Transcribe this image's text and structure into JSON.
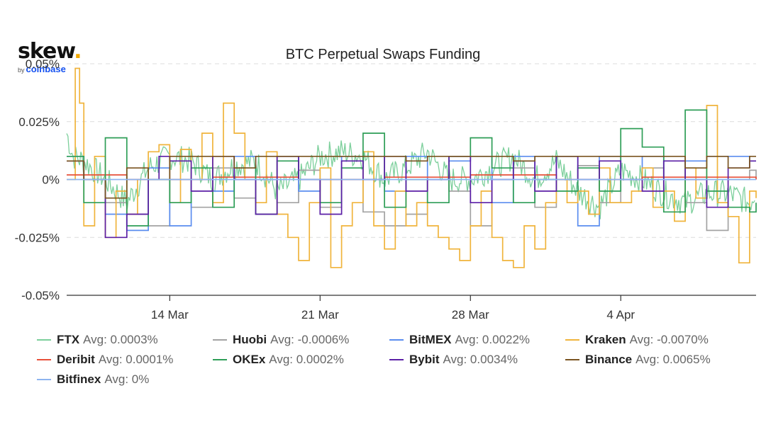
{
  "logo": {
    "word": "skew",
    "dot": ".",
    "by": "by",
    "brand": "coinbase"
  },
  "chart_data": {
    "type": "line",
    "title": "BTC Perpetual Swaps Funding",
    "y_ticks": [
      "0.05%",
      "0.025%",
      "0%",
      "-0.025%",
      "-0.05%"
    ],
    "y_tick_values": [
      0.05,
      0.025,
      0,
      -0.025,
      -0.05
    ],
    "ylim": [
      -0.05,
      0.05
    ],
    "x_ticks": [
      "14 Mar",
      "21 Mar",
      "28 Mar",
      "4 Apr"
    ],
    "x_tick_days": [
      14,
      21,
      28,
      35
    ],
    "xlim": [
      9.2,
      41.3
    ],
    "x_unit": "day of March",
    "gridlines": true,
    "legend_position": "bottom",
    "series": [
      {
        "name": "FTX",
        "avg_label": "Avg: 0.0003%",
        "color": "#7ccf9b",
        "style": "noisy",
        "points": [
          [
            9.2,
            0.02
          ],
          [
            9.5,
            0.01
          ],
          [
            10,
            0.008
          ],
          [
            11,
            0.0
          ],
          [
            12,
            -0.01
          ],
          [
            13,
            0.005
          ],
          [
            14,
            0.01
          ],
          [
            15,
            0.008
          ],
          [
            16,
            0.0
          ],
          [
            17,
            0.006
          ],
          [
            18,
            0.008
          ],
          [
            19,
            -0.005
          ],
          [
            20,
            0.0
          ],
          [
            21,
            0.01
          ],
          [
            22,
            0.012
          ],
          [
            23,
            0.01
          ],
          [
            24,
            0.0
          ],
          [
            25,
            0.005
          ],
          [
            26,
            0.012
          ],
          [
            27,
            0.0
          ],
          [
            28,
            0.0
          ],
          [
            29,
            0.005
          ],
          [
            30,
            0.01
          ],
          [
            31,
            0.0
          ],
          [
            32,
            0.008
          ],
          [
            33,
            -0.005
          ],
          [
            34,
            -0.012
          ],
          [
            35,
            0.004
          ],
          [
            36,
            0.0
          ],
          [
            37,
            -0.006
          ],
          [
            38,
            -0.01
          ],
          [
            39,
            -0.006
          ],
          [
            40,
            -0.006
          ],
          [
            41,
            -0.01
          ],
          [
            41.3,
            -0.005
          ]
        ]
      },
      {
        "name": "Huobi",
        "avg_label": "Avg: -0.0006%",
        "color": "#a3a3a3",
        "style": "step",
        "points": [
          [
            9.2,
            0.008
          ],
          [
            10,
            0.0
          ],
          [
            11,
            -0.01
          ],
          [
            12,
            -0.015
          ],
          [
            13,
            -0.02
          ],
          [
            14,
            0.0
          ],
          [
            15,
            -0.012
          ],
          [
            16,
            0.005
          ],
          [
            17,
            -0.008
          ],
          [
            18,
            0.0
          ],
          [
            19,
            -0.01
          ],
          [
            20,
            0.004
          ],
          [
            21,
            -0.012
          ],
          [
            22,
            0.0
          ],
          [
            23,
            -0.014
          ],
          [
            24,
            -0.02
          ],
          [
            25,
            -0.015
          ],
          [
            26,
            0.0
          ],
          [
            27,
            -0.005
          ],
          [
            28,
            -0.02
          ],
          [
            29,
            0.0
          ],
          [
            30,
            0.005
          ],
          [
            31,
            -0.012
          ],
          [
            32,
            0.0
          ],
          [
            33,
            0.006
          ],
          [
            34,
            -0.01
          ],
          [
            35,
            0.0
          ],
          [
            36,
            0.005
          ],
          [
            37,
            0.0
          ],
          [
            38,
            -0.01
          ],
          [
            39,
            -0.022
          ],
          [
            40,
            0.0
          ],
          [
            41,
            0.004
          ],
          [
            41.3,
            0.0
          ]
        ]
      },
      {
        "name": "BitMEX",
        "avg_label": "Avg: 0.0022%",
        "color": "#5b8def",
        "style": "step",
        "points": [
          [
            9.2,
            0.01
          ],
          [
            10,
            0.0
          ],
          [
            11,
            -0.015
          ],
          [
            12,
            -0.022
          ],
          [
            13,
            0.005
          ],
          [
            14,
            -0.02
          ],
          [
            15,
            0.0
          ],
          [
            16,
            -0.005
          ],
          [
            17,
            0.01
          ],
          [
            18,
            0.0
          ],
          [
            19,
            0.01
          ],
          [
            20,
            -0.005
          ],
          [
            21,
            0.0
          ],
          [
            22,
            0.01
          ],
          [
            23,
            0.0
          ],
          [
            24,
            -0.005
          ],
          [
            25,
            0.01
          ],
          [
            26,
            0.0
          ],
          [
            27,
            0.008
          ],
          [
            28,
            0.01
          ],
          [
            29,
            -0.01
          ],
          [
            30,
            0.01
          ],
          [
            31,
            0.0
          ],
          [
            32,
            0.01
          ],
          [
            33,
            -0.02
          ],
          [
            34,
            0.01
          ],
          [
            35,
            0.0
          ],
          [
            36,
            0.01
          ],
          [
            37,
            0.0
          ],
          [
            38,
            0.008
          ],
          [
            39,
            0.01
          ],
          [
            40,
            0.01
          ],
          [
            41,
            0.008
          ],
          [
            41.3,
            0.008
          ]
        ]
      },
      {
        "name": "Kraken",
        "avg_label": "Avg: -0.0070%",
        "color": "#f0b43c",
        "style": "step",
        "points": [
          [
            9.2,
            0.0
          ],
          [
            9.6,
            0.048
          ],
          [
            9.8,
            0.033
          ],
          [
            10,
            -0.02
          ],
          [
            10.5,
            0.01
          ],
          [
            11,
            -0.025
          ],
          [
            11.5,
            -0.005
          ],
          [
            12,
            -0.015
          ],
          [
            12.5,
            0.0
          ],
          [
            13,
            0.012
          ],
          [
            13.5,
            0.015
          ],
          [
            14,
            -0.01
          ],
          [
            14.5,
            0.013
          ],
          [
            15,
            0.0
          ],
          [
            15.5,
            0.02
          ],
          [
            16,
            -0.01
          ],
          [
            16.5,
            0.033
          ],
          [
            17,
            0.02
          ],
          [
            17.5,
            0.0
          ],
          [
            18,
            -0.01
          ],
          [
            18.5,
            0.012
          ],
          [
            19,
            -0.015
          ],
          [
            19.5,
            -0.025
          ],
          [
            20,
            -0.035
          ],
          [
            20.5,
            -0.01
          ],
          [
            21,
            0.005
          ],
          [
            21.5,
            -0.038
          ],
          [
            22,
            -0.02
          ],
          [
            22.5,
            -0.01
          ],
          [
            23,
            0.012
          ],
          [
            23.5,
            -0.02
          ],
          [
            24,
            -0.03
          ],
          [
            24.5,
            -0.005
          ],
          [
            25,
            -0.02
          ],
          [
            25.5,
            -0.01
          ],
          [
            26,
            -0.02
          ],
          [
            26.5,
            -0.025
          ],
          [
            27,
            -0.03
          ],
          [
            27.5,
            -0.035
          ],
          [
            28,
            -0.02
          ],
          [
            28.5,
            -0.005
          ],
          [
            29,
            -0.025
          ],
          [
            29.5,
            -0.035
          ],
          [
            30,
            -0.038
          ],
          [
            30.5,
            -0.02
          ],
          [
            31,
            -0.03
          ],
          [
            31.5,
            -0.01
          ],
          [
            32,
            0.0
          ],
          [
            32.5,
            -0.01
          ],
          [
            33,
            -0.005
          ],
          [
            33.5,
            -0.015
          ],
          [
            34,
            0.005
          ],
          [
            34.5,
            -0.01
          ],
          [
            35,
            -0.01
          ],
          [
            35.5,
            -0.005
          ],
          [
            36,
            0.005
          ],
          [
            36.5,
            -0.012
          ],
          [
            37,
            -0.005
          ],
          [
            37.5,
            -0.018
          ],
          [
            38,
            0.005
          ],
          [
            38.5,
            -0.008
          ],
          [
            39,
            0.032
          ],
          [
            39.5,
            -0.01
          ],
          [
            40,
            -0.016
          ],
          [
            40.5,
            -0.036
          ],
          [
            41,
            -0.005
          ],
          [
            41.3,
            -0.008
          ]
        ]
      },
      {
        "name": "Deribit",
        "avg_label": "Avg: 0.0001%",
        "color": "#e8503a",
        "style": "step",
        "points": [
          [
            9.2,
            0.002
          ],
          [
            12,
            0.0
          ],
          [
            16,
            0.001
          ],
          [
            20,
            0.0
          ],
          [
            24,
            0.001
          ],
          [
            28,
            0.002
          ],
          [
            32,
            0.0
          ],
          [
            36,
            0.001
          ],
          [
            39,
            0.001
          ],
          [
            41.3,
            0.0
          ]
        ]
      },
      {
        "name": "OKEx",
        "avg_label": "Avg: 0.0002%",
        "color": "#2e9e57",
        "style": "step",
        "points": [
          [
            9.2,
            0.01
          ],
          [
            10,
            -0.01
          ],
          [
            11,
            0.018
          ],
          [
            12,
            -0.02
          ],
          [
            13,
            0.0
          ],
          [
            14,
            -0.01
          ],
          [
            15,
            0.005
          ],
          [
            16,
            -0.012
          ],
          [
            17,
            0.005
          ],
          [
            18,
            -0.015
          ],
          [
            19,
            0.008
          ],
          [
            20,
            0.0
          ],
          [
            21,
            -0.01
          ],
          [
            22,
            0.005
          ],
          [
            23,
            0.02
          ],
          [
            24,
            -0.012
          ],
          [
            25,
            0.0
          ],
          [
            26,
            -0.01
          ],
          [
            27,
            0.01
          ],
          [
            28,
            0.018
          ],
          [
            29,
            0.005
          ],
          [
            30,
            -0.01
          ],
          [
            31,
            0.0
          ],
          [
            32,
            -0.005
          ],
          [
            33,
            0.005
          ],
          [
            34,
            -0.005
          ],
          [
            35,
            0.022
          ],
          [
            36,
            0.014
          ],
          [
            37,
            -0.014
          ],
          [
            38,
            0.03
          ],
          [
            39,
            -0.005
          ],
          [
            40,
            -0.012
          ],
          [
            41,
            -0.014
          ],
          [
            41.3,
            -0.01
          ]
        ]
      },
      {
        "name": "Bybit",
        "avg_label": "Avg: 0.0034%",
        "color": "#5b1fa6",
        "style": "step",
        "points": [
          [
            9.2,
            0.008
          ],
          [
            10,
            0.0
          ],
          [
            11,
            -0.025
          ],
          [
            12,
            -0.015
          ],
          [
            13,
            0.0
          ],
          [
            13.5,
            0.01
          ],
          [
            14,
            0.008
          ],
          [
            15,
            -0.005
          ],
          [
            16,
            0.01
          ],
          [
            17,
            0.0
          ],
          [
            18,
            -0.015
          ],
          [
            19,
            0.01
          ],
          [
            20,
            0.0
          ],
          [
            21,
            -0.015
          ],
          [
            22,
            0.008
          ],
          [
            23,
            0.0
          ],
          [
            24,
            0.01
          ],
          [
            25,
            -0.005
          ],
          [
            26,
            0.0
          ],
          [
            27,
            0.01
          ],
          [
            28,
            -0.01
          ],
          [
            29,
            0.0
          ],
          [
            30,
            0.008
          ],
          [
            31,
            -0.005
          ],
          [
            32,
            0.01
          ],
          [
            33,
            0.0
          ],
          [
            34,
            0.008
          ],
          [
            35,
            0.0
          ],
          [
            36,
            -0.005
          ],
          [
            37,
            0.008
          ],
          [
            38,
            0.0
          ],
          [
            39,
            -0.012
          ],
          [
            40,
            0.005
          ],
          [
            41,
            0.008
          ],
          [
            41.3,
            0.008
          ]
        ]
      },
      {
        "name": "Binance",
        "avg_label": "Avg: 0.0065%",
        "color": "#7a5420",
        "style": "step",
        "points": [
          [
            9.2,
            0.008
          ],
          [
            10,
            0.0
          ],
          [
            11,
            -0.008
          ],
          [
            12,
            0.005
          ],
          [
            13,
            0.0
          ],
          [
            14,
            0.01
          ],
          [
            16,
            0.01
          ],
          [
            17,
            0.005
          ],
          [
            18,
            0.01
          ],
          [
            24,
            0.01
          ],
          [
            25,
            0.008
          ],
          [
            26,
            0.01
          ],
          [
            28,
            0.01
          ],
          [
            30,
            0.008
          ],
          [
            31,
            0.01
          ],
          [
            35,
            0.01
          ],
          [
            36,
            0.01
          ],
          [
            38,
            0.005
          ],
          [
            39,
            0.01
          ],
          [
            40,
            0.005
          ],
          [
            41,
            0.01
          ],
          [
            41.3,
            0.01
          ]
        ]
      },
      {
        "name": "Bitfinex",
        "avg_label": "Avg: 0%",
        "color": "#8db4ef",
        "style": "step",
        "points": [
          [
            9.2,
            0.0
          ],
          [
            41.3,
            0.0
          ]
        ]
      }
    ]
  }
}
